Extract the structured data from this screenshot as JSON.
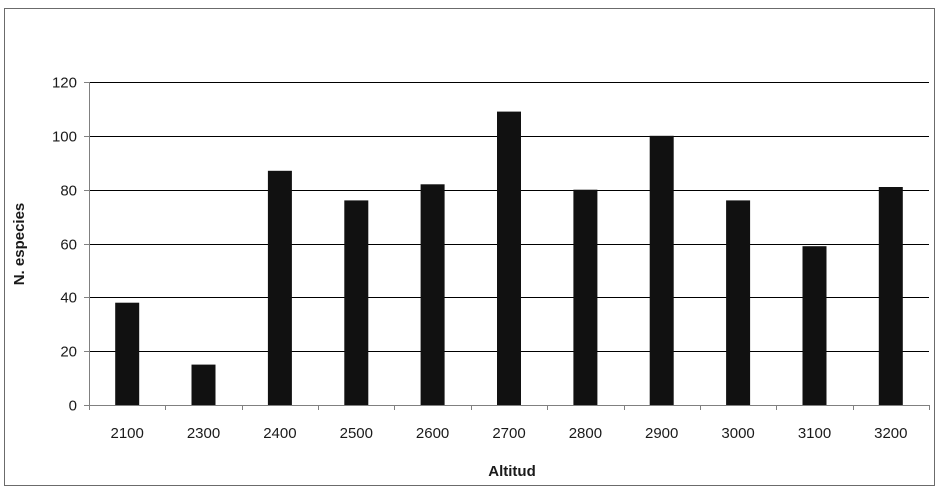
{
  "chart_data": {
    "type": "bar",
    "title": "",
    "xlabel": "Altitud",
    "ylabel": "N. especies",
    "categories": [
      "2100",
      "2300",
      "2400",
      "2500",
      "2600",
      "2700",
      "2800",
      "2900",
      "3000",
      "3100",
      "3200"
    ],
    "values": [
      38,
      15,
      87,
      76,
      82,
      109,
      80,
      100,
      76,
      59,
      81
    ],
    "ylim": [
      0,
      120
    ],
    "yticks": [
      0,
      20,
      40,
      60,
      80,
      100,
      120
    ],
    "grid": true,
    "legend": "none",
    "colors": {
      "bar": "#111111",
      "grid": "#000000",
      "axis": "#808080",
      "frame": "#6b6b6b",
      "text": "#1a1a1a"
    }
  }
}
